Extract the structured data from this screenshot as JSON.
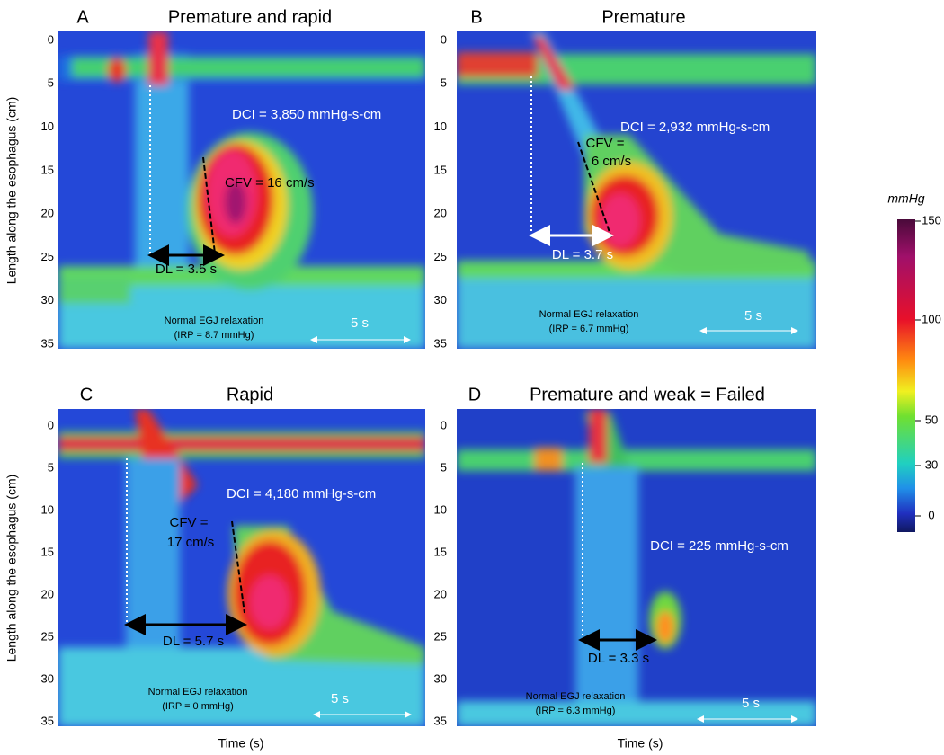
{
  "figure": {
    "y_axis_label": "Length along the esophagus (cm)",
    "x_axis_label": "Time (s)",
    "y_ticks": [
      0,
      5,
      10,
      15,
      20,
      25,
      30,
      35
    ],
    "colorbar": {
      "unit": "mmHg",
      "ticks": [
        150,
        100,
        50,
        30,
        0
      ]
    },
    "panels": [
      {
        "letter": "A",
        "title": "Premature and rapid",
        "dci": "DCI = 3,850 mmHg-s-cm",
        "cfv": [
          "CFV = 16 cm/s"
        ],
        "dl": "DL = 3.5 s",
        "irp": [
          "Normal EGJ relaxation",
          "(IRP = 8.7 mmHg)"
        ],
        "scale": "5 s"
      },
      {
        "letter": "B",
        "title": "Premature",
        "dci": "DCI = 2,932 mmHg-s-cm",
        "cfv": [
          "CFV =",
          "6 cm/s"
        ],
        "dl": "DL = 3.7 s",
        "irp": [
          "Normal EGJ relaxation",
          "(IRP = 6.7 mmHg)"
        ],
        "scale": "5 s"
      },
      {
        "letter": "C",
        "title": "Rapid",
        "dci": "DCI = 4,180 mmHg-s-cm",
        "cfv": [
          "CFV =",
          "17 cm/s"
        ],
        "dl": "DL = 5.7 s",
        "irp": [
          "Normal EGJ relaxation",
          "(IRP = 0 mmHg)"
        ],
        "scale": "5 s"
      },
      {
        "letter": "D",
        "title": "Premature and weak = Failed",
        "dci": "DCI = 225 mmHg-s-cm",
        "dl": "DL = 3.3 s",
        "irp": [
          "Normal EGJ relaxation",
          "(IRP = 6.3 mmHg)"
        ],
        "scale": "5 s"
      }
    ]
  }
}
